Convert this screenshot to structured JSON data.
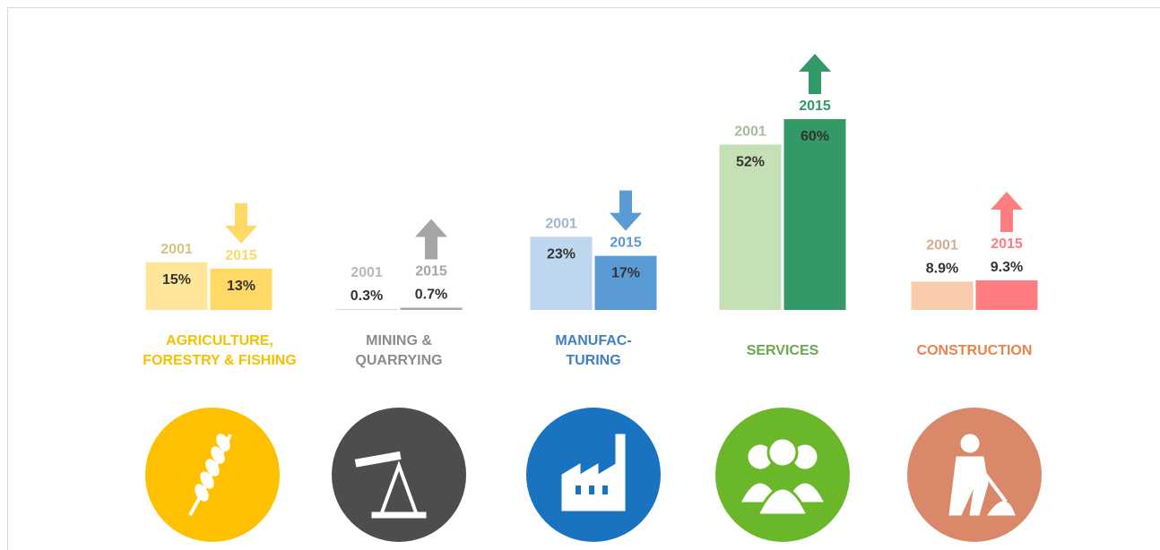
{
  "chart_data": {
    "type": "bar",
    "categories": [
      "AGRICULTURE,\nFORESTRY & FISHING",
      "MINING &\nQUARRYING",
      "MANUFAC-\nTURING",
      "SERVICES",
      "CONSTRUCTION"
    ],
    "category_colors": [
      "#f5c000",
      "#8c8c8c",
      "#3f7fc4",
      "#6aa84f",
      "#e8834a"
    ],
    "icon_colors": [
      "#ffc000",
      "#4d4d4d",
      "#1a73c0",
      "#6ab82a",
      "#d9896a"
    ],
    "series": [
      {
        "name": "2001",
        "values": [
          15,
          0.3,
          23,
          52,
          8.9
        ],
        "value_labels": [
          "15%",
          "0.3%",
          "23%",
          "52%",
          "8.9%"
        ],
        "colors": [
          "#ffe59a",
          "#d9d9d9",
          "#bdd7ee",
          "#c5e0b4",
          "#f8cbad"
        ]
      },
      {
        "name": "2015",
        "values": [
          13,
          0.7,
          17,
          60,
          9.3
        ],
        "value_labels": [
          "13%",
          "0.7%",
          "17%",
          "60%",
          "9.3%"
        ],
        "colors": [
          "#ffd966",
          "#a6a6a6",
          "#5b9bd5",
          "#339966",
          "#ff7c80"
        ]
      }
    ]
  }
}
